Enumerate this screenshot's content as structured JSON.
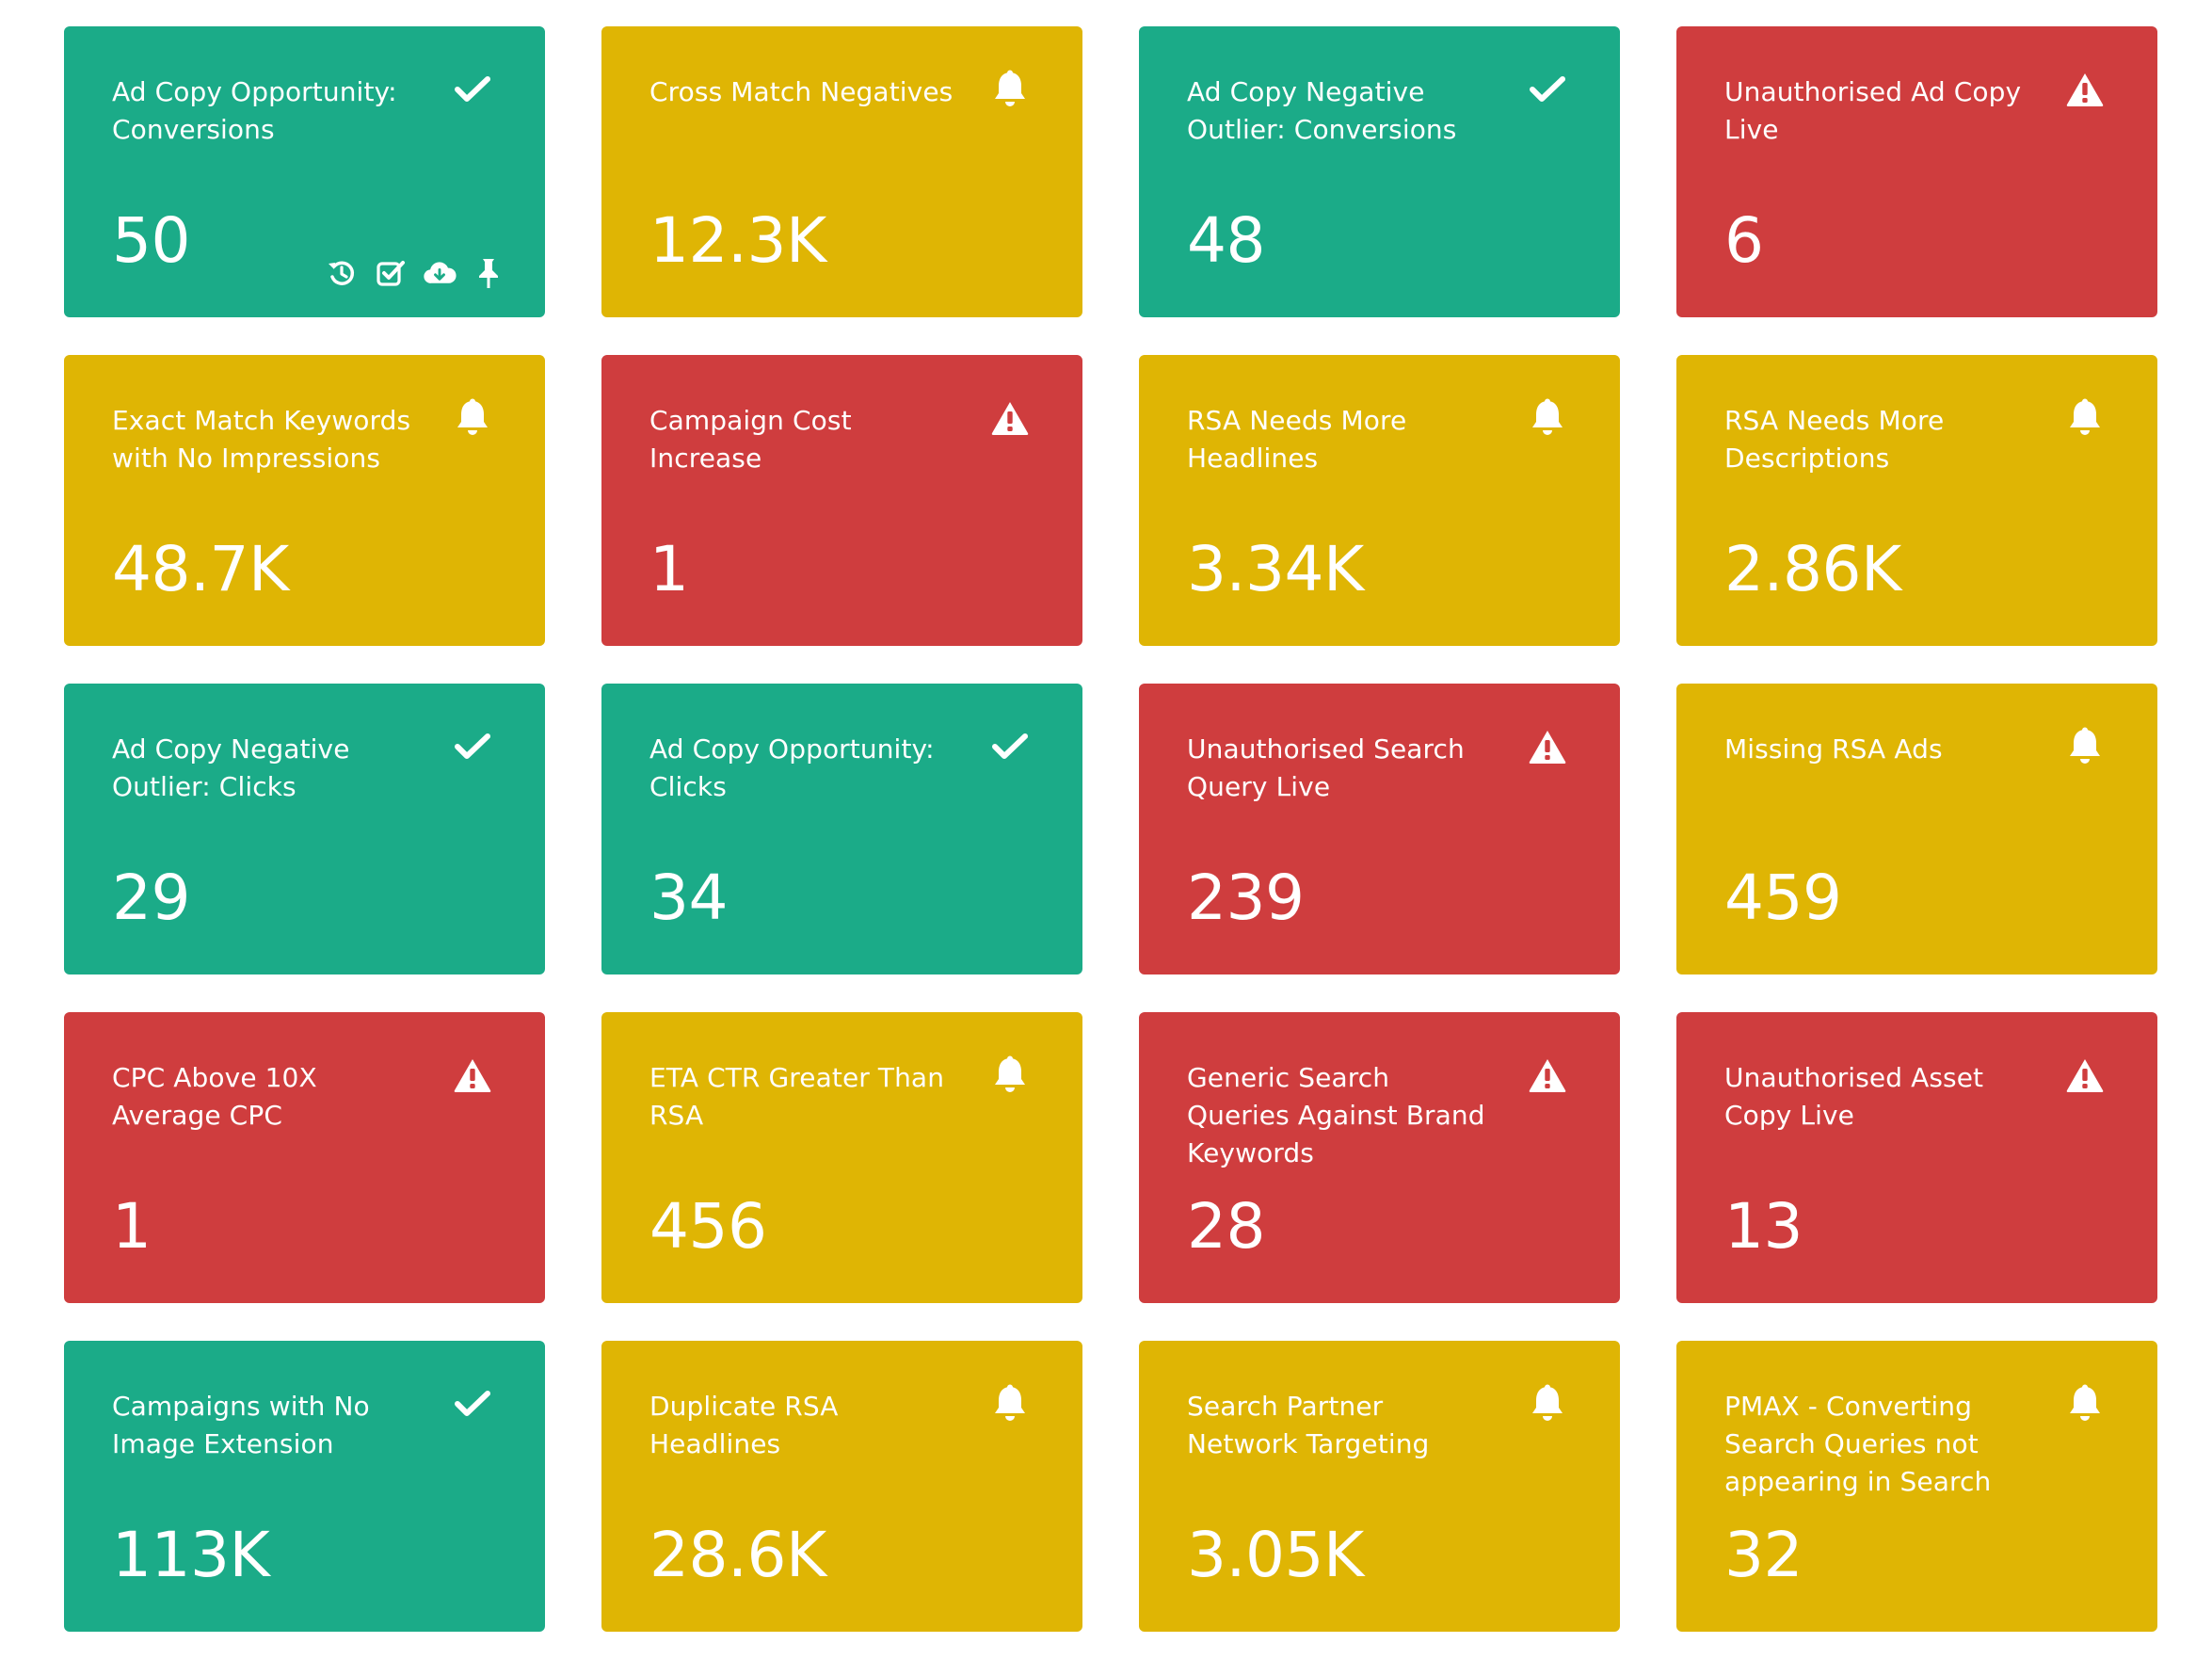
{
  "colors": {
    "green": "#1bab88",
    "yellow": "#dfb504",
    "red": "#cf3d3e"
  },
  "cards": [
    {
      "title": "Ad Copy Opportunity: Conversions",
      "value": "50",
      "status": "green",
      "icon": "check-icon",
      "actions": [
        "history-icon",
        "check-square-icon",
        "cloud-download-icon",
        "pin-icon"
      ]
    },
    {
      "title": "Cross Match Negatives",
      "value": "12.3K",
      "status": "yellow",
      "icon": "bell-icon"
    },
    {
      "title": "Ad Copy Negative Outlier: Conversions",
      "value": "48",
      "status": "green",
      "icon": "check-icon"
    },
    {
      "title": "Unauthorised Ad Copy Live",
      "value": "6",
      "status": "red",
      "icon": "warning-icon"
    },
    {
      "title": "Exact Match Keywords with No Impressions",
      "value": "48.7K",
      "status": "yellow",
      "icon": "bell-icon"
    },
    {
      "title": "Campaign Cost Increase",
      "value": "1",
      "status": "red",
      "icon": "warning-icon"
    },
    {
      "title": "RSA Needs More Headlines",
      "value": "3.34K",
      "status": "yellow",
      "icon": "bell-icon"
    },
    {
      "title": "RSA Needs More Descriptions",
      "value": "2.86K",
      "status": "yellow",
      "icon": "bell-icon"
    },
    {
      "title": "Ad Copy Negative Outlier: Clicks",
      "value": "29",
      "status": "green",
      "icon": "check-icon"
    },
    {
      "title": "Ad Copy Opportunity: Clicks",
      "value": "34",
      "status": "green",
      "icon": "check-icon"
    },
    {
      "title": "Unauthorised Search Query Live",
      "value": "239",
      "status": "red",
      "icon": "warning-icon"
    },
    {
      "title": "Missing RSA Ads",
      "value": "459",
      "status": "yellow",
      "icon": "bell-icon"
    },
    {
      "title": "CPC Above 10X Average CPC",
      "value": "1",
      "status": "red",
      "icon": "warning-icon"
    },
    {
      "title": "ETA CTR Greater Than RSA",
      "value": "456",
      "status": "yellow",
      "icon": "bell-icon"
    },
    {
      "title": "Generic Search Queries Against Brand Keywords",
      "value": "28",
      "status": "red",
      "icon": "warning-icon"
    },
    {
      "title": "Unauthorised Asset Copy Live",
      "value": "13",
      "status": "red",
      "icon": "warning-icon"
    },
    {
      "title": "Campaigns with No Image Extension",
      "value": "113K",
      "status": "green",
      "icon": "check-icon"
    },
    {
      "title": "Duplicate RSA Headlines",
      "value": "28.6K",
      "status": "yellow",
      "icon": "bell-icon"
    },
    {
      "title": "Search Partner Network Targeting",
      "value": "3.05K",
      "status": "yellow",
      "icon": "bell-icon"
    },
    {
      "title": "PMAX - Converting Search Queries not appearing in Search",
      "value": "32",
      "status": "yellow",
      "icon": "bell-icon"
    }
  ]
}
